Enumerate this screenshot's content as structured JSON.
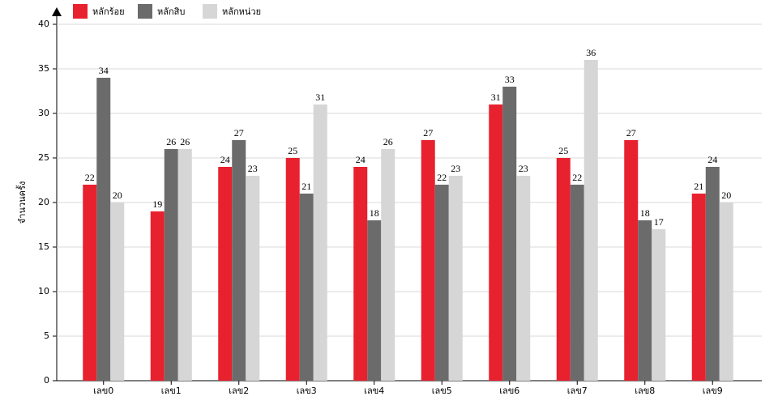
{
  "chart_data": {
    "type": "bar",
    "y_label": "จำนวนครั้ง",
    "categories": [
      "เลข0",
      "เลข1",
      "เลข2",
      "เลข3",
      "เลข4",
      "เลข5",
      "เลข6",
      "เลข7",
      "เลข8",
      "เลข9"
    ],
    "series": [
      {
        "name": "หลักร้อย",
        "color": "#e8212f",
        "values": [
          22,
          19,
          24,
          25,
          24,
          27,
          31,
          25,
          27,
          21
        ]
      },
      {
        "name": "หลักสิบ",
        "color": "#6b6b6b",
        "values": [
          34,
          26,
          27,
          21,
          18,
          22,
          33,
          22,
          18,
          24
        ]
      },
      {
        "name": "หลักหน่วย",
        "color": "#d6d6d6",
        "values": [
          20,
          26,
          23,
          31,
          26,
          23,
          23,
          36,
          17,
          20
        ]
      }
    ],
    "ylim": [
      0,
      40
    ],
    "yticks": [
      0,
      5,
      10,
      15,
      20,
      25,
      30,
      35,
      40
    ],
    "grid": true
  }
}
